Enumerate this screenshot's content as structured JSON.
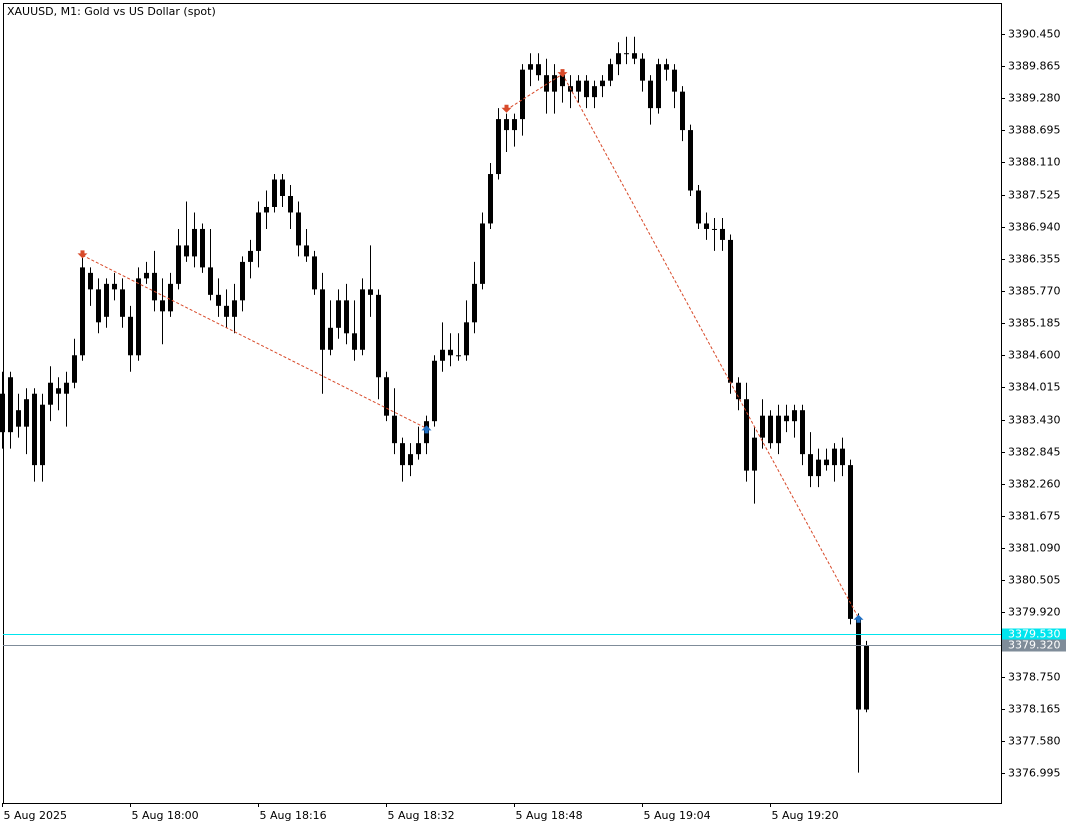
{
  "chart_data": {
    "type": "candlestick",
    "title": "XAUUSD, M1:  Gold vs US Dollar (spot)",
    "categories": [
      "5 Aug 2025",
      null,
      null,
      null,
      null,
      null,
      null,
      null,
      null,
      null,
      null,
      null,
      null,
      null,
      null,
      null,
      "5 Aug 18:00",
      null,
      null,
      null,
      null,
      null,
      null,
      null,
      null,
      null,
      null,
      null,
      null,
      null,
      null,
      null,
      "5 Aug 18:16",
      null,
      null,
      null,
      null,
      null,
      null,
      null,
      null,
      null,
      null,
      null,
      null,
      null,
      null,
      null,
      "5 Aug 18:32",
      null,
      null,
      null,
      null,
      null,
      null,
      null,
      null,
      null,
      null,
      null,
      null,
      null,
      null,
      null,
      "5 Aug 18:48",
      null,
      null,
      null,
      null,
      null,
      null,
      null,
      null,
      null,
      null,
      null,
      null,
      null,
      null,
      null,
      "5 Aug 19:04",
      null,
      null,
      null,
      null,
      null,
      null,
      null,
      null,
      null,
      null,
      null,
      null,
      null,
      null,
      null,
      "5 Aug 19:20",
      null,
      null,
      null,
      null,
      null,
      null,
      null,
      null,
      null,
      null,
      null,
      null
    ],
    "open": [
      3383.9,
      3383.2,
      3383.6,
      3383.3,
      3383.9,
      3382.6,
      3383.7,
      3384.0,
      3383.9,
      3384.1,
      3384.6,
      3386.1,
      3385.8,
      3385.3,
      3385.9,
      3385.8,
      3385.3,
      3384.6,
      3386.0,
      3386.1,
      3385.6,
      3385.4,
      3385.9,
      3386.6,
      3386.4,
      3386.9,
      3386.2,
      3385.7,
      3385.5,
      3385.3,
      3385.6,
      3386.3,
      3386.5,
      3387.2,
      3387.3,
      3387.8,
      3387.5,
      3387.2,
      3386.6,
      3386.4,
      3385.8,
      3384.7,
      3385.1,
      3385.6,
      3385.0,
      3384.7,
      3385.8,
      3385.7,
      3384.2,
      3383.5,
      3383.0,
      3382.6,
      3382.8,
      3383.0,
      3383.4,
      3384.5,
      3384.7,
      3384.6,
      3384.6,
      3385.2,
      3385.9,
      3387.0,
      3387.9,
      3388.9,
      3388.7,
      3388.9,
      3389.8,
      3389.9,
      3389.7,
      3389.4,
      3389.7,
      3389.5,
      3389.4,
      3389.6,
      3389.3,
      3389.5,
      3389.6,
      3389.9,
      3390.1,
      3390.1,
      3390.0,
      3389.6,
      3389.1,
      3389.9,
      3389.8,
      3389.4,
      3388.7,
      3387.6,
      3387.0,
      3386.9,
      3386.9,
      3386.7,
      3384.1,
      3383.8,
      3382.5,
      3383.1,
      3383.5,
      3383.0,
      3383.5,
      3383.4,
      3383.6,
      3382.8,
      3382.4,
      3382.7,
      3382.6,
      3382.9,
      3382.6,
      3379.8,
      3378.15
    ],
    "high": [
      3384.3,
      3384.3,
      3383.9,
      3384.0,
      3384.0,
      3383.9,
      3384.4,
      3384.2,
      3384.3,
      3384.9,
      3386.4,
      3386.2,
      3386.0,
      3386.0,
      3386.1,
      3386.0,
      3385.5,
      3386.2,
      3386.3,
      3386.5,
      3386.0,
      3386.1,
      3386.9,
      3387.4,
      3387.2,
      3387.0,
      3386.9,
      3386.0,
      3385.8,
      3385.9,
      3386.4,
      3386.7,
      3387.4,
      3387.6,
      3387.9,
      3387.9,
      3387.7,
      3387.4,
      3386.9,
      3386.5,
      3386.1,
      3385.6,
      3385.8,
      3385.9,
      3385.6,
      3386.0,
      3386.6,
      3385.8,
      3384.3,
      3384.0,
      3383.1,
      3383.0,
      3383.3,
      3383.5,
      3384.6,
      3385.2,
      3385.0,
      3385.0,
      3385.6,
      3386.3,
      3387.2,
      3388.1,
      3389.1,
      3389.0,
      3389.0,
      3389.9,
      3390.1,
      3390.1,
      3390.0,
      3389.9,
      3389.8,
      3389.7,
      3389.7,
      3389.7,
      3389.6,
      3389.7,
      3390.0,
      3390.3,
      3390.4,
      3390.4,
      3390.1,
      3389.7,
      3390.0,
      3390.0,
      3389.9,
      3389.5,
      3388.8,
      3387.7,
      3387.2,
      3387.1,
      3387.1,
      3386.8,
      3384.2,
      3384.1,
      3383.3,
      3383.8,
      3383.6,
      3383.7,
      3383.7,
      3383.7,
      3383.7,
      3383.2,
      3382.9,
      3382.9,
      3383.0,
      3383.1,
      3382.7,
      3379.9,
      3379.4
    ],
    "low": [
      3382.9,
      3382.9,
      3383.1,
      3382.8,
      3382.3,
      3382.3,
      3383.4,
      3383.6,
      3383.3,
      3384.0,
      3384.5,
      3385.5,
      3385.0,
      3385.1,
      3385.6,
      3385.1,
      3384.3,
      3384.5,
      3385.9,
      3385.4,
      3384.8,
      3385.3,
      3385.8,
      3386.3,
      3386.2,
      3386.1,
      3385.6,
      3385.3,
      3385.1,
      3385.0,
      3385.4,
      3386.0,
      3386.2,
      3386.9,
      3387.2,
      3387.3,
      3386.9,
      3386.4,
      3386.3,
      3385.7,
      3383.9,
      3384.6,
      3384.9,
      3384.8,
      3384.5,
      3384.6,
      3385.3,
      3383.8,
      3383.4,
      3382.8,
      3382.3,
      3382.4,
      3382.7,
      3382.8,
      3383.3,
      3384.3,
      3384.4,
      3384.5,
      3384.5,
      3385.0,
      3385.8,
      3386.9,
      3387.8,
      3388.3,
      3388.4,
      3388.6,
      3389.5,
      3389.6,
      3389.0,
      3389.0,
      3389.2,
      3389.1,
      3389.2,
      3389.1,
      3389.1,
      3389.3,
      3389.5,
      3389.7,
      3389.9,
      3389.9,
      3389.4,
      3388.8,
      3389.0,
      3389.6,
      3389.1,
      3388.5,
      3387.5,
      3386.9,
      3386.7,
      3386.5,
      3386.5,
      3383.9,
      3383.6,
      3382.3,
      3381.9,
      3382.9,
      3382.9,
      3382.8,
      3383.2,
      3383.1,
      3382.6,
      3382.2,
      3382.2,
      3382.5,
      3382.3,
      3382.4,
      3379.7,
      3377.0,
      3378.1
    ],
    "close": [
      3383.2,
      3384.2,
      3383.3,
      3383.8,
      3382.6,
      3383.7,
      3384.1,
      3383.9,
      3384.1,
      3384.6,
      3386.2,
      3385.8,
      3385.2,
      3385.9,
      3385.8,
      3385.3,
      3384.6,
      3386.0,
      3386.1,
      3385.6,
      3385.4,
      3385.9,
      3386.6,
      3386.4,
      3386.9,
      3386.2,
      3385.7,
      3385.5,
      3385.3,
      3385.6,
      3386.3,
      3386.5,
      3387.2,
      3387.3,
      3387.8,
      3387.5,
      3387.2,
      3386.6,
      3386.4,
      3385.8,
      3384.7,
      3385.1,
      3385.6,
      3385.0,
      3384.7,
      3385.8,
      3385.7,
      3384.2,
      3383.5,
      3383.0,
      3382.6,
      3382.8,
      3383.0,
      3383.4,
      3384.5,
      3384.7,
      3384.6,
      3384.6,
      3385.2,
      3385.9,
      3387.0,
      3387.9,
      3388.9,
      3388.7,
      3388.9,
      3389.8,
      3389.9,
      3389.7,
      3389.4,
      3389.7,
      3389.5,
      3389.4,
      3389.6,
      3389.3,
      3389.5,
      3389.6,
      3389.9,
      3390.1,
      3390.1,
      3390.0,
      3389.6,
      3389.1,
      3389.9,
      3389.8,
      3389.4,
      3388.7,
      3387.6,
      3387.0,
      3386.9,
      3386.9,
      3386.7,
      3384.1,
      3383.8,
      3382.5,
      3383.1,
      3383.5,
      3383.0,
      3383.5,
      3383.4,
      3383.6,
      3382.8,
      3382.4,
      3382.7,
      3382.6,
      3382.9,
      3382.6,
      3379.8,
      3378.15,
      3379.32
    ],
    "color": "#000000",
    "ylim": [
      3376.448,
      3391.014
    ],
    "yticks": [
      {
        "value": 3390.45,
        "label": "3390.450"
      },
      3389.865,
      {
        "value": 3389.28,
        "label": "3389.280"
      },
      3388.695,
      {
        "value": 3388.11,
        "label": "3388.110"
      },
      3387.525,
      {
        "value": 3386.94,
        "label": "3386.940"
      },
      3386.355,
      {
        "value": 3385.77,
        "label": "3385.770"
      },
      3385.185,
      {
        "value": 3384.6,
        "label": "3384.600"
      },
      3384.015,
      {
        "value": 3383.43,
        "label": "3383.430"
      },
      3382.845,
      {
        "value": 3382.26,
        "label": "3382.260"
      },
      3381.675,
      {
        "value": 3381.09,
        "label": "3381.090"
      },
      3380.505,
      {
        "value": 3379.92,
        "label": "3379.920"
      },
      {
        "value": 3378.75,
        "label": "3378.750"
      },
      3378.165,
      {
        "value": 3377.58,
        "label": "3377.580"
      },
      3376.995
    ],
    "price_lines": [
      {
        "value": 3379.53,
        "label": "3379.530",
        "color": "#00e5ee"
      },
      {
        "value": 3379.32,
        "label": "3379.320",
        "color": "#7f8c99"
      }
    ],
    "markers": [
      {
        "kind": "sell",
        "candle": 10,
        "price": 3386.42,
        "color": "#d84a2a"
      },
      {
        "kind": "buy",
        "candle": 53,
        "price": 3383.27,
        "color": "#1f6fc4"
      },
      {
        "kind": "sell",
        "candle": 63,
        "price": 3389.07,
        "color": "#d84a2a"
      },
      {
        "kind": "sell",
        "candle": 70,
        "price": 3389.72,
        "color": "#d84a2a"
      },
      {
        "kind": "buy",
        "candle": 107,
        "price": 3379.82,
        "color": "#1f6fc4"
      }
    ]
  }
}
